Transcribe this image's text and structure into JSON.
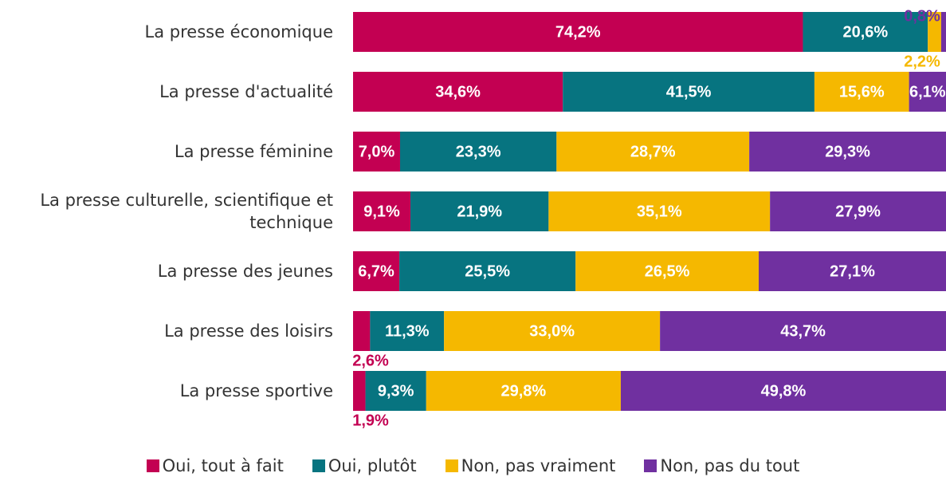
{
  "chart_data": {
    "type": "stacked-bar-horizontal-percent",
    "categories": [
      "La presse économique",
      "La presse d'actualité",
      "La presse féminine",
      "La presse culturelle, scientifique et technique",
      "La presse des jeunes",
      "La presse des loisirs",
      "La presse sportive"
    ],
    "series": [
      {
        "name": "Oui, tout à fait",
        "color": "#c30052",
        "values": [
          74.2,
          34.6,
          7.0,
          9.1,
          6.7,
          2.6,
          1.9
        ],
        "value_labels": [
          "74,2%",
          "34,6%",
          "7,0%",
          "9,1%",
          "6,7%",
          "2,6%",
          "1,9%"
        ]
      },
      {
        "name": "Oui, plutôt",
        "color": "#077480",
        "values": [
          20.6,
          41.5,
          23.3,
          21.9,
          25.5,
          11.3,
          9.3
        ],
        "value_labels": [
          "20,6%",
          "41,5%",
          "23,3%",
          "21,9%",
          "25,5%",
          "11,3%",
          "9,3%"
        ]
      },
      {
        "name": "Non, pas vraiment",
        "color": "#f5b800",
        "values": [
          2.2,
          15.6,
          28.7,
          35.1,
          26.5,
          33.0,
          29.8
        ],
        "value_labels": [
          "2,2%",
          "15,6%",
          "28,7%",
          "35,1%",
          "26,5%",
          "33,0%",
          "29,8%"
        ]
      },
      {
        "name": "Non, pas du tout",
        "color": "#7030a0",
        "values": [
          0.8,
          6.1,
          29.3,
          27.9,
          27.1,
          43.7,
          49.8
        ],
        "value_labels": [
          "0,8%",
          "6,1%",
          "29,3%",
          "27,9%",
          "27,1%",
          "43,7%",
          "49,8%"
        ]
      }
    ],
    "legend": "bottom"
  }
}
